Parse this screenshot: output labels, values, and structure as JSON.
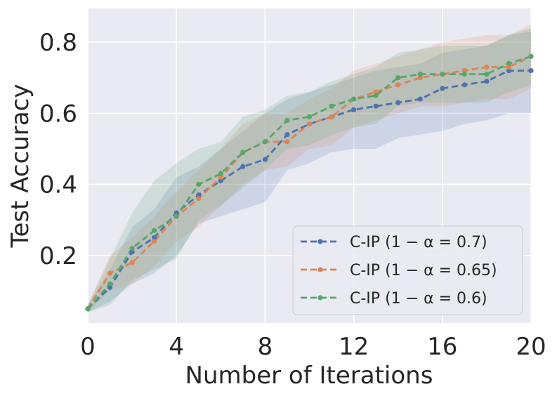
{
  "chart_data": {
    "type": "line",
    "title": "",
    "xlabel": "Number of Iterations",
    "ylabel": "Test Accuracy",
    "xlim": [
      0,
      20
    ],
    "ylim": [
      0.01,
      0.895
    ],
    "xticks": [
      0,
      4,
      8,
      12,
      16,
      20
    ],
    "xtick_labels": [
      "0",
      "4",
      "8",
      "12",
      "16",
      "20"
    ],
    "yticks": [
      0.2,
      0.4,
      0.6,
      0.8
    ],
    "ytick_labels": [
      "0.2",
      "0.4",
      "0.6",
      "0.8"
    ],
    "grid": true,
    "legend_position": "lower-right",
    "background_color": "#eaeaf2",
    "x": [
      0,
      1,
      2,
      3,
      4,
      5,
      6,
      7,
      8,
      9,
      10,
      11,
      12,
      13,
      14,
      15,
      16,
      17,
      18,
      19,
      20
    ],
    "series": [
      {
        "name": "C-IP",
        "alpha_label": "(1 − α = 0.7)",
        "color": "#4c72b0",
        "values": [
          0.05,
          0.11,
          0.21,
          0.25,
          0.32,
          0.37,
          0.41,
          0.45,
          0.47,
          0.54,
          0.57,
          0.59,
          0.61,
          0.62,
          0.63,
          0.64,
          0.67,
          0.68,
          0.69,
          0.72,
          0.72
        ],
        "lower": [
          0.04,
          0.07,
          0.12,
          0.15,
          0.2,
          0.29,
          0.31,
          0.33,
          0.35,
          0.44,
          0.46,
          0.49,
          0.5,
          0.5,
          0.53,
          0.54,
          0.55,
          0.57,
          0.58,
          0.6,
          0.6
        ],
        "upper": [
          0.06,
          0.16,
          0.28,
          0.33,
          0.42,
          0.45,
          0.5,
          0.55,
          0.6,
          0.64,
          0.66,
          0.68,
          0.7,
          0.72,
          0.73,
          0.74,
          0.77,
          0.78,
          0.79,
          0.82,
          0.83
        ]
      },
      {
        "name": "C-IP",
        "alpha_label": "(1 − α = 0.65)",
        "color": "#dd8452",
        "values": [
          0.05,
          0.15,
          0.18,
          0.24,
          0.31,
          0.36,
          0.42,
          0.49,
          0.52,
          0.52,
          0.57,
          0.59,
          0.64,
          0.66,
          0.68,
          0.7,
          0.71,
          0.72,
          0.73,
          0.73,
          0.76
        ],
        "lower": [
          0.04,
          0.1,
          0.12,
          0.17,
          0.24,
          0.28,
          0.34,
          0.4,
          0.44,
          0.45,
          0.5,
          0.51,
          0.56,
          0.58,
          0.6,
          0.62,
          0.62,
          0.63,
          0.64,
          0.64,
          0.67
        ],
        "upper": [
          0.06,
          0.2,
          0.25,
          0.31,
          0.38,
          0.44,
          0.5,
          0.57,
          0.6,
          0.6,
          0.64,
          0.67,
          0.72,
          0.74,
          0.76,
          0.78,
          0.8,
          0.81,
          0.82,
          0.82,
          0.85
        ]
      },
      {
        "name": "C-IP",
        "alpha_label": "(1 − α = 0.6)",
        "color": "#55a868",
        "values": [
          0.05,
          0.12,
          0.22,
          0.27,
          0.31,
          0.4,
          0.43,
          0.49,
          0.52,
          0.58,
          0.59,
          0.62,
          0.64,
          0.65,
          0.7,
          0.71,
          0.71,
          0.71,
          0.71,
          0.74,
          0.76
        ],
        "lower": [
          0.04,
          0.06,
          0.13,
          0.16,
          0.19,
          0.3,
          0.34,
          0.39,
          0.44,
          0.5,
          0.51,
          0.54,
          0.56,
          0.57,
          0.62,
          0.63,
          0.63,
          0.63,
          0.63,
          0.66,
          0.68
        ],
        "upper": [
          0.06,
          0.19,
          0.32,
          0.41,
          0.46,
          0.5,
          0.52,
          0.59,
          0.61,
          0.65,
          0.66,
          0.69,
          0.71,
          0.73,
          0.77,
          0.78,
          0.79,
          0.79,
          0.79,
          0.82,
          0.84
        ]
      }
    ]
  }
}
